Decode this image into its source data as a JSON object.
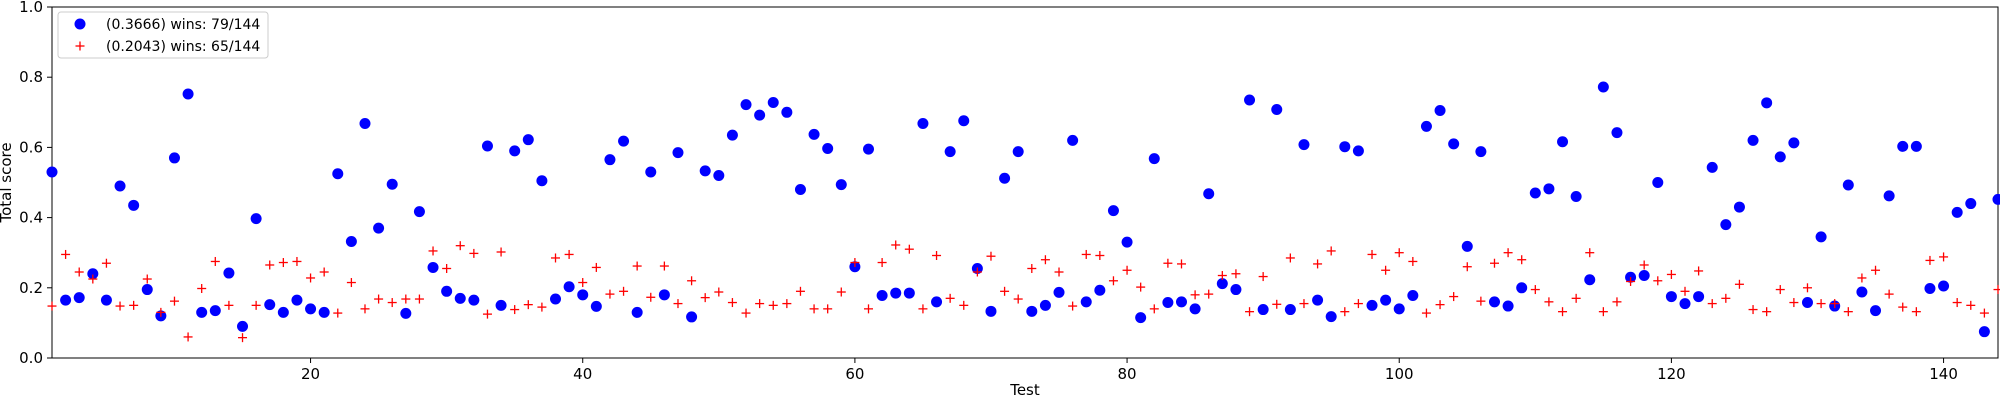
{
  "chart_data": {
    "type": "scatter",
    "xlabel": "Test",
    "ylabel": "Total score",
    "xlim": [
      1,
      144
    ],
    "ylim": [
      0,
      1.0
    ],
    "x_ticks": [
      20,
      40,
      60,
      80,
      100,
      120,
      140
    ],
    "y_ticks": [
      0.0,
      0.2,
      0.4,
      0.6,
      0.8,
      1.0
    ],
    "x_tick_labels": [
      "20",
      "40",
      "60",
      "80",
      "100",
      "120",
      "140"
    ],
    "y_tick_labels": [
      "0.0",
      "0.2",
      "0.4",
      "0.6",
      "0.8",
      "1.0"
    ],
    "grid": false,
    "legend_position": "top-left",
    "series": [
      {
        "name": "(0.3666) wins: 79/144",
        "marker": "circle",
        "color": "#0000ff",
        "x": [
          1,
          2,
          3,
          4,
          5,
          6,
          7,
          8,
          9,
          10,
          11,
          12,
          13,
          14,
          15,
          16,
          17,
          18,
          19,
          20,
          21,
          22,
          23,
          24,
          25,
          26,
          27,
          28,
          29,
          30,
          31,
          32,
          33,
          34,
          35,
          36,
          37,
          38,
          39,
          40,
          41,
          42,
          43,
          44,
          45,
          46,
          47,
          48,
          49,
          50,
          51,
          52,
          53,
          54,
          55,
          56,
          57,
          58,
          59,
          60,
          61,
          62,
          63,
          64,
          65,
          66,
          67,
          68,
          69,
          70,
          71,
          72,
          73,
          74,
          75,
          76,
          77,
          78,
          79,
          80,
          81,
          82,
          83,
          84,
          85,
          86,
          87,
          88,
          89,
          90,
          91,
          92,
          93,
          94,
          95,
          96,
          97,
          98,
          99,
          100,
          101,
          102,
          103,
          104,
          105,
          106,
          107,
          108,
          109,
          110,
          111,
          112,
          113,
          114,
          115,
          116,
          117,
          118,
          119,
          120,
          121,
          122,
          123,
          124,
          125,
          126,
          127,
          128,
          129,
          130,
          131,
          132,
          133,
          134,
          135,
          136,
          137,
          138,
          139,
          140,
          141,
          142,
          143,
          144
        ],
        "y": [
          0.53,
          0.165,
          0.172,
          0.24,
          0.165,
          0.49,
          0.435,
          0.195,
          0.12,
          0.57,
          0.752,
          0.13,
          0.135,
          0.242,
          0.09,
          0.397,
          0.152,
          0.13,
          0.165,
          0.14,
          0.13,
          0.525,
          0.332,
          0.668,
          0.37,
          0.495,
          0.127,
          0.417,
          0.258,
          0.19,
          0.17,
          0.165,
          0.604,
          0.15,
          0.59,
          0.622,
          0.505,
          0.168,
          0.203,
          0.18,
          0.147,
          0.565,
          0.618,
          0.13,
          0.53,
          0.18,
          0.585,
          0.117,
          0.533,
          0.52,
          0.635,
          0.722,
          0.692,
          0.728,
          0.7,
          0.48,
          0.637,
          0.597,
          0.494,
          0.26,
          0.595,
          0.178,
          0.185,
          0.185,
          0.668,
          0.16,
          0.588,
          0.676,
          0.255,
          0.133,
          0.512,
          0.588,
          0.133,
          0.15,
          0.187,
          0.62,
          0.16,
          0.193,
          0.42,
          0.33,
          0.115,
          0.568,
          0.158,
          0.16,
          0.14,
          0.468,
          0.212,
          0.195,
          0.735,
          0.138,
          0.708,
          0.138,
          0.608,
          0.165,
          0.118,
          0.602,
          0.59,
          0.15,
          0.165,
          0.14,
          0.178,
          0.66,
          0.705,
          0.61,
          0.318,
          0.588,
          0.16,
          0.148,
          0.2,
          0.47,
          0.482,
          0.616,
          0.46,
          0.223,
          0.772,
          0.642,
          0.23,
          0.235,
          0.5,
          0.175,
          0.155,
          0.175,
          0.543,
          0.38,
          0.43,
          0.62,
          0.727,
          0.573,
          0.613,
          0.158,
          0.345,
          0.148,
          0.493,
          0.188,
          0.135,
          0.462,
          0.603,
          0.603,
          0.198,
          0.205,
          0.415,
          0.44,
          0.075,
          0.452
        ]
      },
      {
        "name": "(0.2043) wins: 65/144",
        "marker": "plus",
        "color": "#ff0000",
        "x": [
          1,
          2,
          3,
          4,
          5,
          6,
          7,
          8,
          9,
          10,
          11,
          12,
          13,
          14,
          15,
          16,
          17,
          18,
          19,
          20,
          21,
          22,
          23,
          24,
          25,
          26,
          27,
          28,
          29,
          30,
          31,
          32,
          33,
          34,
          35,
          36,
          37,
          38,
          39,
          40,
          41,
          42,
          43,
          44,
          45,
          46,
          47,
          48,
          49,
          50,
          51,
          52,
          53,
          54,
          55,
          56,
          57,
          58,
          59,
          60,
          61,
          62,
          63,
          64,
          65,
          66,
          67,
          68,
          69,
          70,
          71,
          72,
          73,
          74,
          75,
          76,
          77,
          78,
          79,
          80,
          81,
          82,
          83,
          84,
          85,
          86,
          87,
          88,
          89,
          90,
          91,
          92,
          93,
          94,
          95,
          96,
          97,
          98,
          99,
          100,
          101,
          102,
          103,
          104,
          105,
          106,
          107,
          108,
          109,
          110,
          111,
          112,
          113,
          114,
          115,
          116,
          117,
          118,
          119,
          120,
          121,
          122,
          123,
          124,
          125,
          126,
          127,
          128,
          129,
          130,
          131,
          132,
          133,
          134,
          135,
          136,
          137,
          138,
          139,
          140,
          141,
          142,
          143,
          144
        ],
        "y": [
          0.148,
          0.295,
          0.245,
          0.225,
          0.27,
          0.148,
          0.15,
          0.225,
          0.13,
          0.162,
          0.06,
          0.198,
          0.275,
          0.15,
          0.058,
          0.15,
          0.265,
          0.272,
          0.275,
          0.228,
          0.245,
          0.128,
          0.215,
          0.14,
          0.168,
          0.158,
          0.168,
          0.168,
          0.305,
          0.255,
          0.32,
          0.298,
          0.125,
          0.302,
          0.138,
          0.152,
          0.145,
          0.285,
          0.295,
          0.215,
          0.258,
          0.182,
          0.19,
          0.262,
          0.173,
          0.262,
          0.155,
          0.22,
          0.172,
          0.188,
          0.158,
          0.128,
          0.155,
          0.15,
          0.155,
          0.19,
          0.14,
          0.14,
          0.188,
          0.272,
          0.14,
          0.272,
          0.322,
          0.31,
          0.14,
          0.292,
          0.17,
          0.15,
          0.245,
          0.29,
          0.19,
          0.168,
          0.255,
          0.28,
          0.245,
          0.148,
          0.295,
          0.292,
          0.22,
          0.25,
          0.202,
          0.14,
          0.27,
          0.268,
          0.18,
          0.182,
          0.235,
          0.24,
          0.132,
          0.232,
          0.153,
          0.285,
          0.155,
          0.268,
          0.305,
          0.132,
          0.155,
          0.295,
          0.25,
          0.3,
          0.275,
          0.128,
          0.152,
          0.175,
          0.26,
          0.162,
          0.27,
          0.3,
          0.28,
          0.195,
          0.16,
          0.132,
          0.17,
          0.3,
          0.132,
          0.16,
          0.218,
          0.265,
          0.22,
          0.238,
          0.19,
          0.248,
          0.155,
          0.17,
          0.21,
          0.138,
          0.132,
          0.195,
          0.158,
          0.2,
          0.155,
          0.155,
          0.132,
          0.228,
          0.25,
          0.182,
          0.145,
          0.132,
          0.278,
          0.288,
          0.158,
          0.15,
          0.128,
          0.195
        ]
      }
    ]
  }
}
